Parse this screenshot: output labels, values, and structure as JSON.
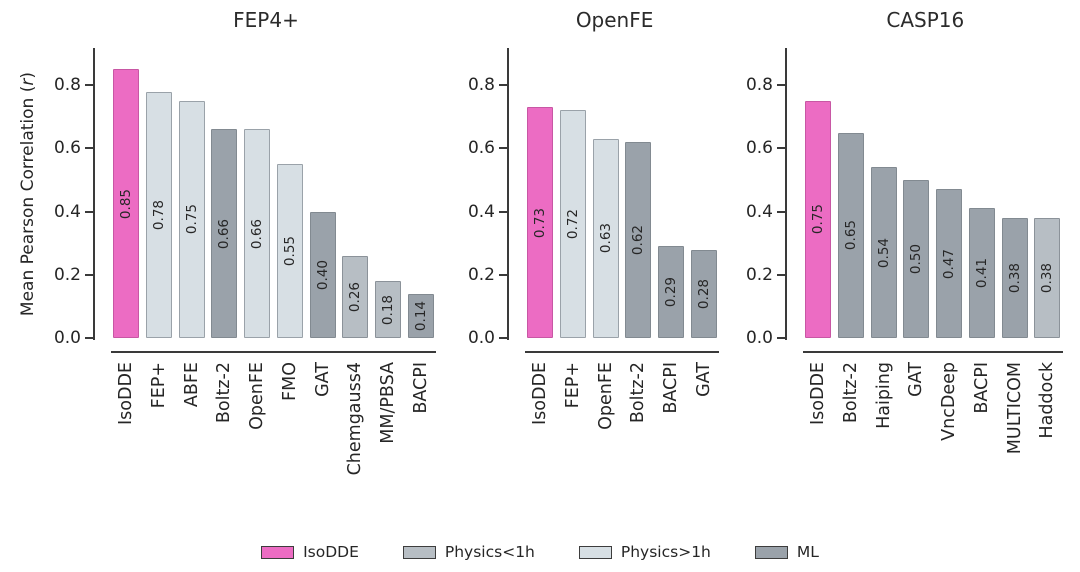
{
  "figure": {
    "background": "#ffffff",
    "ylabel": {
      "full": "Mean Pearson Correlation (r)",
      "prefix": "Mean Pearson Correlation (",
      "italic": "r",
      "suffix": ")"
    }
  },
  "palette": {
    "isodde": {
      "fill": "#ec6cc3",
      "edge": "#c857a4"
    },
    "physics_lt1h": {
      "fill": "#b7bec4",
      "edge": "#8b9299"
    },
    "physics_gt1h": {
      "fill": "#d7dfe4",
      "edge": "#9aa2a9"
    },
    "ml": {
      "fill": "#9aa2aa",
      "edge": "#828a91"
    }
  },
  "legend": {
    "items": [
      {
        "label": "IsoDDE",
        "color": "isodde"
      },
      {
        "label": "Physics<1h",
        "color": "physics_lt1h"
      },
      {
        "label": "Physics>1h",
        "color": "physics_gt1h"
      },
      {
        "label": "ML",
        "color": "ml"
      }
    ]
  },
  "chart_data": [
    {
      "type": "bar",
      "title": "FEP4+",
      "ylabel": "Mean Pearson Correlation (r)",
      "ylim": [
        0,
        0.92
      ],
      "yticks": [
        "0.0",
        "0.2",
        "0.4",
        "0.6",
        "0.8"
      ],
      "grid": false,
      "categories": [
        "IsoDDE",
        "FEP+",
        "ABFE",
        "Boltz-2",
        "OpenFE",
        "FMO",
        "GAT",
        "Chemgauss4",
        "MM/PBSA",
        "BACPI"
      ],
      "values": [
        0.85,
        0.78,
        0.75,
        0.66,
        0.66,
        0.55,
        0.4,
        0.26,
        0.18,
        0.14
      ],
      "value_labels": [
        "0.85",
        "0.78",
        "0.75",
        "0.66",
        "0.66",
        "0.55",
        "0.40",
        "0.26",
        "0.18",
        "0.14"
      ],
      "bar_colors": [
        "isodde",
        "physics_gt1h",
        "physics_gt1h",
        "ml",
        "physics_gt1h",
        "physics_gt1h",
        "ml",
        "physics_lt1h",
        "physics_lt1h",
        "ml"
      ]
    },
    {
      "type": "bar",
      "title": "OpenFE",
      "ylim": [
        0,
        0.92
      ],
      "yticks": [
        "0.0",
        "0.2",
        "0.4",
        "0.6",
        "0.8"
      ],
      "grid": false,
      "categories": [
        "IsoDDE",
        "FEP+",
        "OpenFE",
        "Boltz-2",
        "BACPI",
        "GAT"
      ],
      "values": [
        0.73,
        0.72,
        0.63,
        0.62,
        0.29,
        0.28
      ],
      "value_labels": [
        "0.73",
        "0.72",
        "0.63",
        "0.62",
        "0.29",
        "0.28"
      ],
      "bar_colors": [
        "isodde",
        "physics_gt1h",
        "physics_gt1h",
        "ml",
        "ml",
        "ml"
      ]
    },
    {
      "type": "bar",
      "title": "CASP16",
      "ylim": [
        0,
        0.92
      ],
      "yticks": [
        "0.0",
        "0.2",
        "0.4",
        "0.6",
        "0.8"
      ],
      "grid": false,
      "categories": [
        "IsoDDE",
        "Boltz-2",
        "Haiping",
        "GAT",
        "VncDeep",
        "BACPI",
        "MULTICOM",
        "Haddock"
      ],
      "values": [
        0.75,
        0.65,
        0.54,
        0.5,
        0.47,
        0.41,
        0.38,
        0.38
      ],
      "value_labels": [
        "0.75",
        "0.65",
        "0.54",
        "0.50",
        "0.47",
        "0.41",
        "0.38",
        "0.38"
      ],
      "bar_colors": [
        "isodde",
        "ml",
        "ml",
        "ml",
        "ml",
        "ml",
        "ml",
        "physics_lt1h"
      ]
    }
  ]
}
